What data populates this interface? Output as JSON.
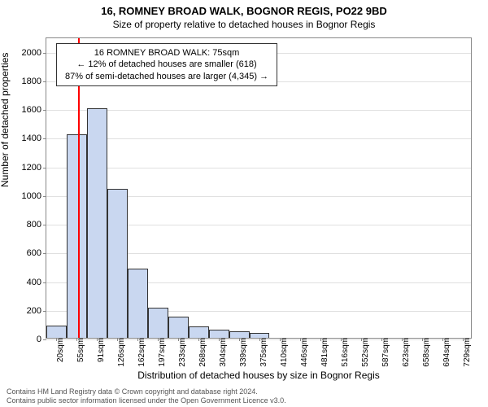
{
  "title_main": "16, ROMNEY BROAD WALK, BOGNOR REGIS, PO22 9BD",
  "title_sub": "Size of property relative to detached houses in Bognor Regis",
  "ylabel": "Number of detached properties",
  "xlabel": "Distribution of detached houses by size in Bognor Regis",
  "footer_line1": "Contains HM Land Registry data © Crown copyright and database right 2024.",
  "footer_line2": "Contains public sector information licensed under the Open Government Licence v3.0.",
  "annotation": {
    "line1": "16 ROMNEY BROAD WALK: 75sqm",
    "line2": "← 12% of detached houses are smaller (618)",
    "line3": "87% of semi-detached houses are larger (4,345) →"
  },
  "chart": {
    "type": "histogram",
    "ymin": 0,
    "ymax": 2100,
    "yticks": [
      0,
      200,
      400,
      600,
      800,
      1000,
      1200,
      1400,
      1600,
      1800,
      2000
    ],
    "xticks_labels": [
      "20sqm",
      "55sqm",
      "91sqm",
      "126sqm",
      "162sqm",
      "197sqm",
      "233sqm",
      "268sqm",
      "304sqm",
      "339sqm",
      "375sqm",
      "410sqm",
      "446sqm",
      "481sqm",
      "516sqm",
      "552sqm",
      "587sqm",
      "623sqm",
      "658sqm",
      "694sqm",
      "729sqm"
    ],
    "n_slots": 21,
    "bars": [
      {
        "slot": 0,
        "value": 85
      },
      {
        "slot": 1,
        "value": 1420
      },
      {
        "slot": 2,
        "value": 1600
      },
      {
        "slot": 3,
        "value": 1040
      },
      {
        "slot": 4,
        "value": 480
      },
      {
        "slot": 5,
        "value": 210
      },
      {
        "slot": 6,
        "value": 145
      },
      {
        "slot": 7,
        "value": 80
      },
      {
        "slot": 8,
        "value": 55
      },
      {
        "slot": 9,
        "value": 45
      },
      {
        "slot": 10,
        "value": 35
      }
    ],
    "bar_fill": "#c9d7f0",
    "bar_stroke": "#333333",
    "background": "#ffffff",
    "grid_color": "#e0e0e0",
    "ref_line": {
      "x_value": 75,
      "x_min": 20,
      "x_max": 765,
      "color": "#ff0000",
      "width": 2
    }
  }
}
